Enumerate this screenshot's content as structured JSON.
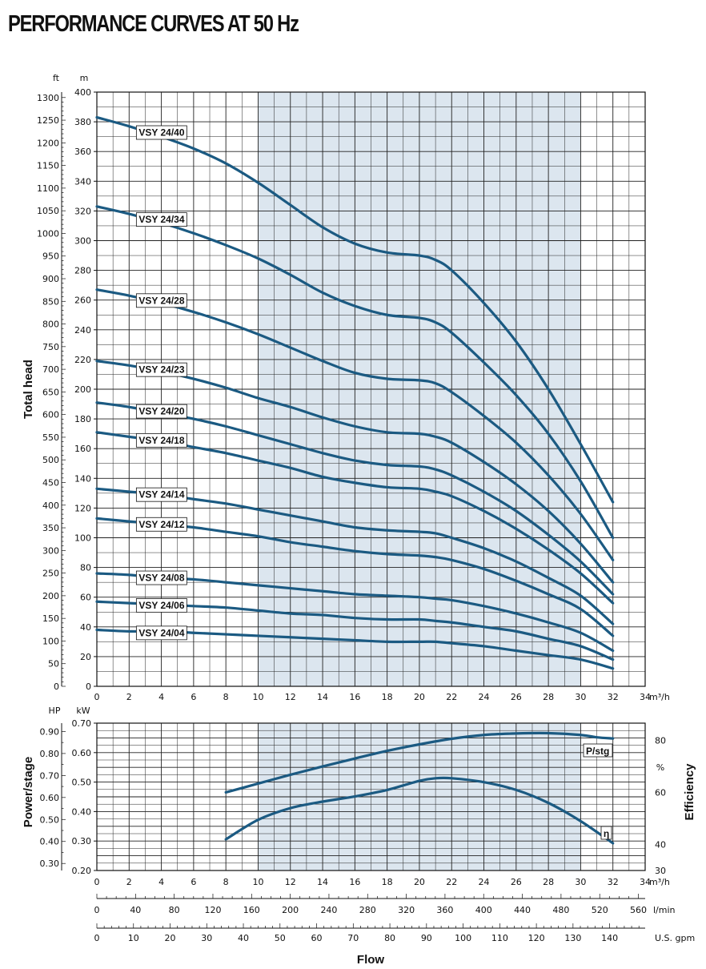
{
  "title": "PERFORMANCE CURVES AT 50 Hz",
  "colors": {
    "curve": "#1b5a82",
    "shade": "#dce6ef",
    "grid": "#222222"
  },
  "chart_data": [
    {
      "type": "line",
      "ylabel": "Total head",
      "x_unit": "m³/h",
      "y_unit": "m",
      "y2_unit": "ft",
      "xlim": [
        0,
        34
      ],
      "ylim": [
        0,
        400
      ],
      "y2lim": [
        0,
        1312
      ],
      "x_ticks": [
        0,
        2,
        4,
        6,
        8,
        10,
        12,
        14,
        16,
        18,
        20,
        22,
        24,
        26,
        28,
        30,
        32,
        34
      ],
      "y_ticks": [
        0,
        20,
        40,
        60,
        80,
        100,
        120,
        140,
        160,
        180,
        200,
        220,
        240,
        260,
        280,
        300,
        320,
        340,
        360,
        380,
        400
      ],
      "y2_ticks": [
        0,
        50,
        100,
        150,
        200,
        250,
        300,
        350,
        400,
        450,
        500,
        550,
        600,
        650,
        700,
        750,
        800,
        850,
        900,
        950,
        1000,
        1050,
        1100,
        1150,
        1200,
        1250,
        1300
      ],
      "shaded_x_range": [
        10,
        30
      ],
      "grid": true,
      "series": [
        {
          "name": "VSY 24/40",
          "x": [
            0,
            2,
            4,
            6,
            8,
            10,
            12,
            14,
            16,
            18,
            20,
            21,
            22,
            24,
            26,
            28,
            30,
            32
          ],
          "values": [
            383,
            377,
            370,
            362,
            352,
            339,
            324,
            309,
            298,
            292,
            290,
            287,
            280,
            258,
            232,
            200,
            163,
            124
          ]
        },
        {
          "name": "VSY 24/34",
          "x": [
            0,
            2,
            4,
            6,
            8,
            10,
            12,
            14,
            16,
            18,
            20,
            21,
            22,
            24,
            26,
            28,
            30,
            32
          ],
          "values": [
            323,
            318,
            312,
            305,
            297,
            288,
            277,
            265,
            256,
            250,
            248,
            245,
            238,
            218,
            196,
            170,
            138,
            100
          ]
        },
        {
          "name": "VSY 24/28",
          "x": [
            0,
            2,
            4,
            6,
            8,
            10,
            12,
            14,
            16,
            18,
            20,
            21,
            22,
            24,
            26,
            28,
            30,
            32
          ],
          "values": [
            267,
            263,
            258,
            252,
            245,
            237,
            228,
            219,
            211,
            207,
            206,
            204,
            198,
            182,
            164,
            142,
            116,
            85
          ]
        },
        {
          "name": "VSY 24/23",
          "x": [
            0,
            2,
            4,
            6,
            8,
            10,
            12,
            14,
            16,
            18,
            20,
            21,
            22,
            24,
            26,
            28,
            30,
            32
          ],
          "values": [
            219,
            216,
            212,
            207,
            201,
            194,
            188,
            181,
            175,
            171,
            170,
            168,
            164,
            151,
            136,
            118,
            96,
            70
          ]
        },
        {
          "name": "VSY 24/20",
          "x": [
            0,
            2,
            4,
            6,
            8,
            10,
            12,
            14,
            16,
            18,
            20,
            21,
            22,
            24,
            26,
            28,
            30,
            32
          ],
          "values": [
            191,
            188,
            184,
            180,
            175,
            169,
            163,
            157,
            152,
            149,
            148,
            146,
            142,
            131,
            118,
            102,
            84,
            62
          ]
        },
        {
          "name": "VSY 24/18",
          "x": [
            0,
            2,
            4,
            6,
            8,
            10,
            12,
            14,
            16,
            18,
            20,
            21,
            22,
            24,
            26,
            28,
            30,
            32
          ],
          "values": [
            171,
            168,
            165,
            161,
            157,
            152,
            147,
            141,
            137,
            134,
            133,
            131,
            128,
            118,
            106,
            92,
            76,
            56
          ]
        },
        {
          "name": "VSY 24/14",
          "x": [
            0,
            2,
            4,
            6,
            8,
            10,
            12,
            14,
            16,
            18,
            20,
            21,
            22,
            24,
            26,
            28,
            30,
            32
          ],
          "values": [
            133,
            131,
            129,
            126,
            123,
            119,
            115,
            111,
            107,
            105,
            104,
            103,
            100,
            93,
            84,
            73,
            61,
            42
          ]
        },
        {
          "name": "VSY 24/12",
          "x": [
            0,
            2,
            4,
            6,
            8,
            10,
            12,
            14,
            16,
            18,
            20,
            21,
            22,
            24,
            26,
            28,
            30,
            32
          ],
          "values": [
            113,
            111,
            109,
            107,
            104,
            101,
            97,
            94,
            91,
            89,
            88,
            87,
            85,
            79,
            71,
            62,
            52,
            34
          ]
        },
        {
          "name": "VSY 24/08",
          "x": [
            0,
            2,
            4,
            6,
            8,
            10,
            12,
            14,
            16,
            18,
            20,
            21,
            22,
            24,
            26,
            28,
            30,
            32
          ],
          "values": [
            76,
            75,
            73,
            72,
            70,
            68,
            66,
            64,
            62,
            61,
            60,
            59,
            58,
            54,
            49,
            43,
            36,
            24
          ]
        },
        {
          "name": "VSY 24/06",
          "x": [
            0,
            2,
            4,
            6,
            8,
            10,
            12,
            14,
            16,
            18,
            20,
            21,
            22,
            24,
            26,
            28,
            30,
            32
          ],
          "values": [
            57,
            56,
            55,
            54,
            53,
            51,
            49,
            48,
            46,
            45,
            45,
            44,
            43,
            40,
            37,
            32,
            27,
            18
          ]
        },
        {
          "name": "VSY 24/04",
          "x": [
            0,
            2,
            4,
            6,
            8,
            10,
            12,
            14,
            16,
            18,
            20,
            21,
            22,
            24,
            26,
            28,
            30,
            32
          ],
          "values": [
            38,
            37,
            37,
            36,
            35,
            34,
            33,
            32,
            31,
            30,
            30,
            30,
            29,
            27,
            24,
            21,
            18,
            12
          ]
        }
      ]
    },
    {
      "type": "line",
      "ylabel": "Power/stage",
      "y2label": "Efficiency",
      "x_unit": "m³/h",
      "y_unit": "kW",
      "hp_unit": "HP",
      "eff_unit": "%",
      "xlim": [
        0,
        34
      ],
      "ylim": [
        0.2,
        0.7
      ],
      "hplim": [
        0.268,
        0.938
      ],
      "efflim": [
        30,
        86.7
      ],
      "x_ticks": [
        0,
        2,
        4,
        6,
        8,
        10,
        12,
        14,
        16,
        18,
        20,
        22,
        24,
        26,
        28,
        30,
        32,
        34
      ],
      "y_ticks": [
        "0.20",
        "0.30",
        "0.40",
        "0.50",
        "0.60",
        "0.70"
      ],
      "hp_ticks": [
        "0.30",
        "0.40",
        "0.50",
        "0.60",
        "0.70",
        "0.80",
        "0.90"
      ],
      "eff_ticks": [
        30,
        40,
        60,
        80
      ],
      "shaded_x_range": [
        10,
        30
      ],
      "grid": true,
      "series": [
        {
          "name": "P/stg",
          "axis": "kW",
          "x": [
            8,
            10,
            12,
            14,
            16,
            18,
            20,
            22,
            24,
            26,
            28,
            30,
            31,
            32
          ],
          "values": [
            0.465,
            0.495,
            0.525,
            0.553,
            0.58,
            0.606,
            0.628,
            0.647,
            0.66,
            0.665,
            0.666,
            0.66,
            0.652,
            0.648
          ]
        },
        {
          "name": "η",
          "axis": "%",
          "x": [
            8,
            10,
            12,
            14,
            16,
            18,
            20,
            21,
            22,
            24,
            26,
            28,
            30,
            32
          ],
          "values": [
            42,
            49.5,
            54,
            56.5,
            58.5,
            61,
            64.5,
            65.5,
            65.5,
            64,
            61,
            56,
            49,
            40.5
          ]
        }
      ]
    }
  ],
  "flow_axes": {
    "lmin": {
      "unit": "l/min",
      "ticks": [
        0,
        40,
        80,
        120,
        160,
        200,
        240,
        280,
        320,
        360,
        400,
        440,
        480,
        520,
        560
      ]
    },
    "gpm": {
      "unit": "U.S. gpm",
      "ticks": [
        0,
        10,
        20,
        30,
        40,
        50,
        60,
        70,
        80,
        90,
        100,
        110,
        120,
        130,
        140
      ]
    },
    "xlabel": "Flow"
  }
}
